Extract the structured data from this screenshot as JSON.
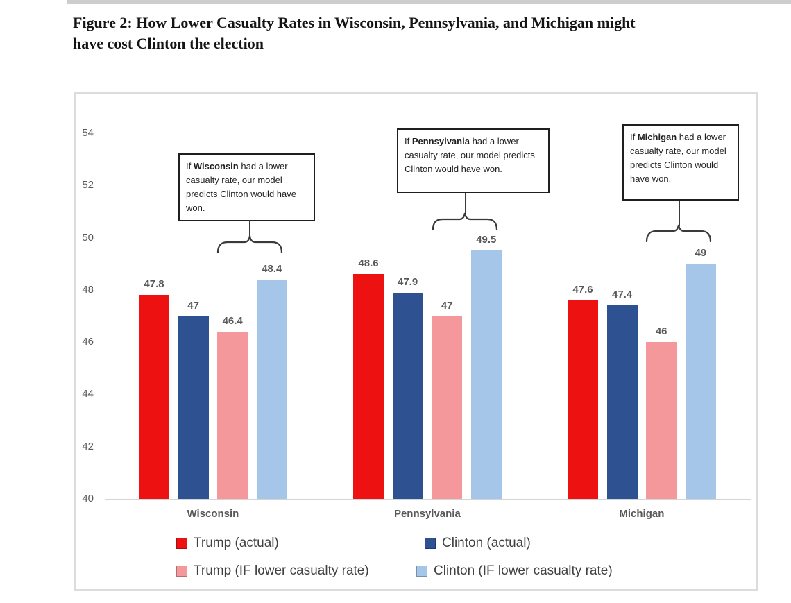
{
  "page": {
    "title_line1": "Figure 2: How Lower Casualty Rates in Wisconsin, Pennsylvania, and Michigan might",
    "title_line2": "have cost Clinton the election"
  },
  "chart_data": {
    "type": "bar",
    "title": "Figure 2: How Lower Casualty Rates in Wisconsin, Pennsylvania, and Michigan might have cost Clinton the election",
    "categories": [
      "Wisconsin",
      "Pennsylvania",
      "Michigan"
    ],
    "series": [
      {
        "name": "Trump (actual)",
        "color": "#ee1111",
        "values": [
          47.8,
          48.6,
          47.6
        ]
      },
      {
        "name": "Clinton (actual)",
        "color": "#2e5191",
        "values": [
          47,
          47.9,
          47.4
        ]
      },
      {
        "name": "Trump (IF lower casualty rate)",
        "color": "#f5989b",
        "values": [
          46.4,
          47,
          46
        ]
      },
      {
        "name": "Clinton (IF lower casualty rate)",
        "color": "#a5c6e8",
        "values": [
          48.4,
          49.5,
          49
        ]
      }
    ],
    "xlabel": "",
    "ylabel": "",
    "ylim": [
      40,
      54
    ],
    "yticks": [
      40,
      42,
      44,
      46,
      48,
      50,
      52,
      54
    ],
    "grid": false,
    "legend_position": "bottom",
    "annotations": [
      {
        "before": "If ",
        "bold": "Wisconsin",
        "after": " had a lower casualty rate, our model predicts Clinton would have won."
      },
      {
        "before": "If ",
        "bold": "Pennsylvania",
        "after": " had a lower casualty rate, our model predicts Clinton would have won."
      },
      {
        "before": "If ",
        "bold": "Michigan",
        "after": " had a lower casualty rate, our model predicts Clinton would have won."
      }
    ],
    "colors": {
      "axis_text": "#595959",
      "baseline": "#d5d5d5",
      "frame_border": "#dcdcdc",
      "annotation_border": "#1f1f1f",
      "brace": "#3a3a3a"
    }
  }
}
